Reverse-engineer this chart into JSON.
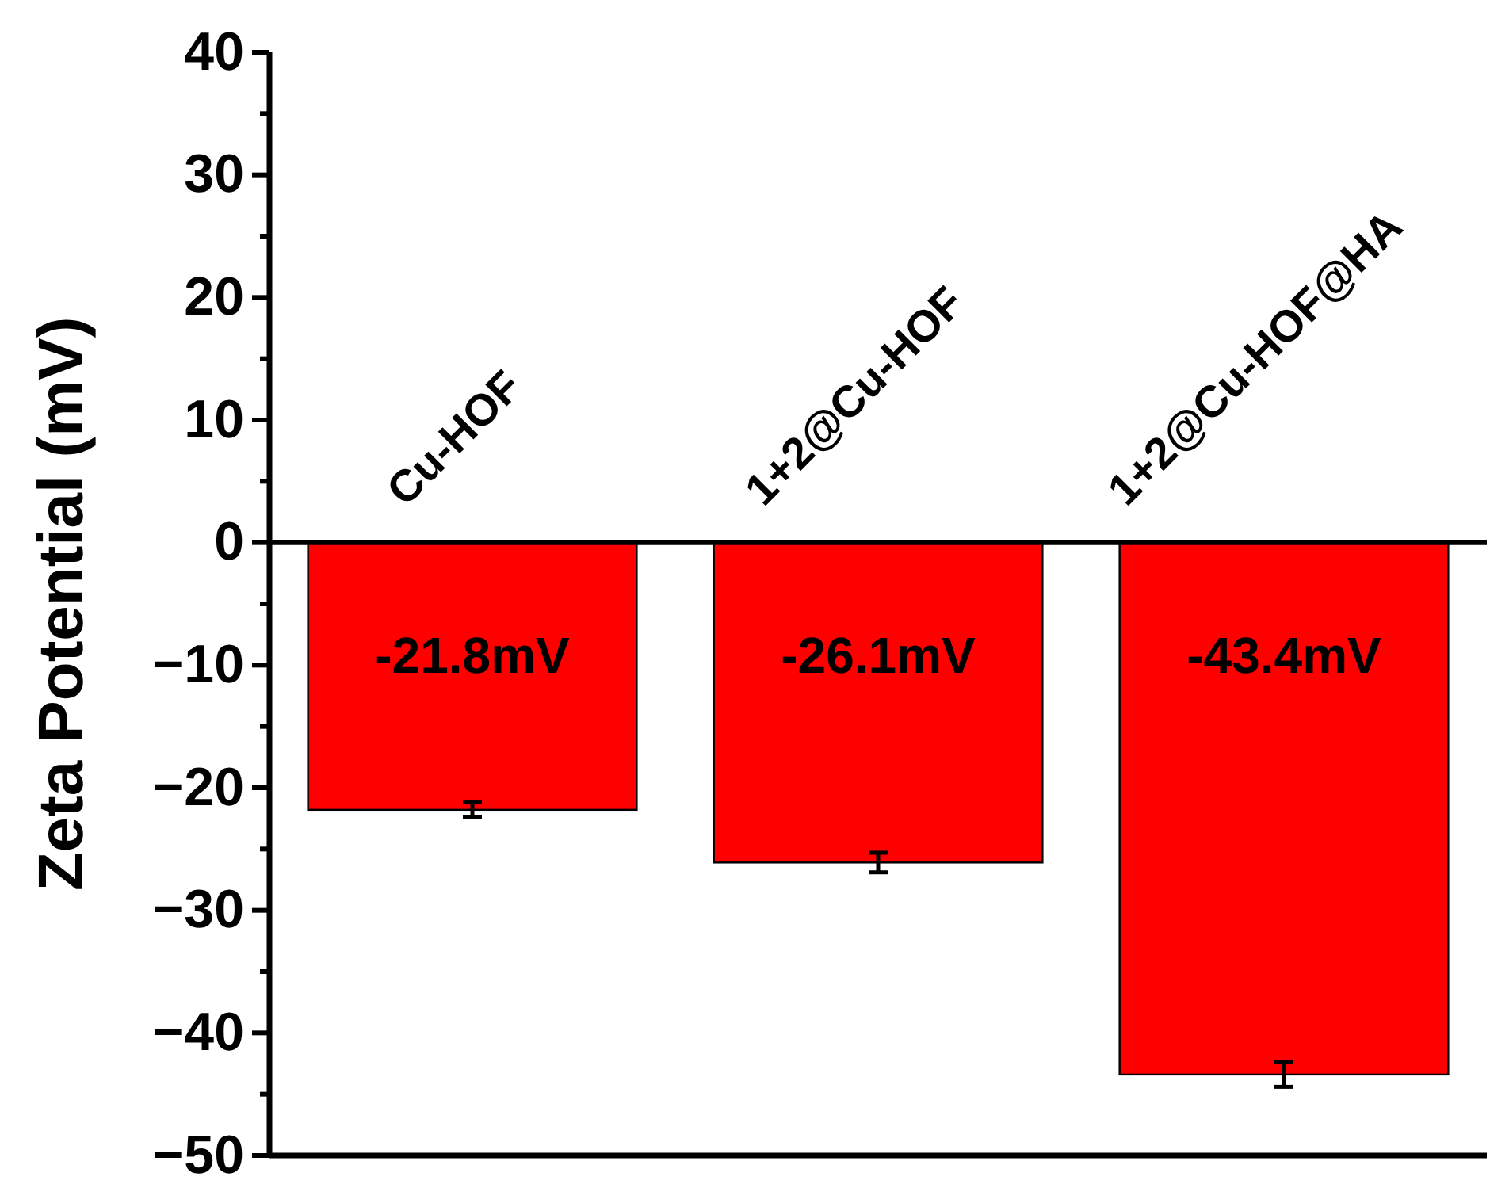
{
  "chart_data": {
    "type": "bar",
    "ylabel": "Zeta Potential (mV)",
    "categories": [
      "Cu-HOF",
      "1+2@Cu-HOF",
      "1+2@Cu-HOF@HA"
    ],
    "values": [
      -21.8,
      -26.1,
      -43.4
    ],
    "errors": [
      0.6,
      0.8,
      1.0
    ],
    "value_labels": [
      "-21.8mV",
      "-26.1mV",
      "-43.4mV"
    ],
    "color": "#ff0000",
    "ylim": [
      -50,
      40
    ],
    "yticks": [
      -50,
      {
        "value": -45,
        "label": null
      },
      {
        "value": -40,
        "label": "−40"
      },
      {
        "value": -35,
        "label": null
      },
      {
        "value": -30,
        "label": "−30"
      },
      {
        "value": -25,
        "label": null
      },
      {
        "value": -20,
        "label": "−20"
      },
      {
        "value": -15,
        "label": null
      },
      {
        "value": -10,
        "label": "−10"
      },
      {
        "value": -5,
        "label": null
      },
      0,
      {
        "value": 5,
        "label": null
      },
      10,
      {
        "value": 15,
        "label": null
      },
      20,
      {
        "value": 25,
        "label": null
      },
      30,
      {
        "value": 35,
        "label": null
      },
      40
    ],
    "grid": false
  }
}
